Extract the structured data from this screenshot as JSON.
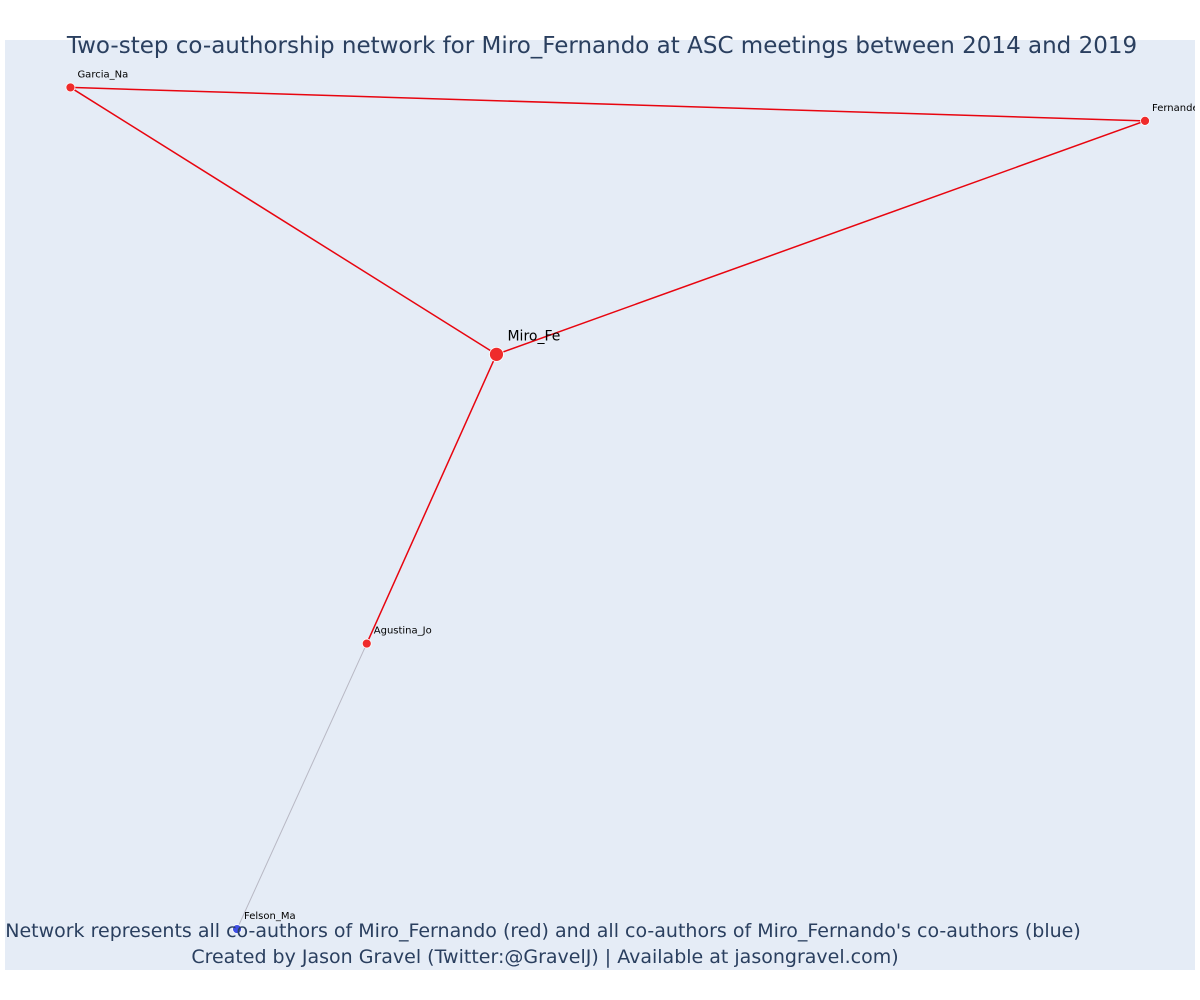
{
  "chart_data": {
    "type": "network",
    "title": "Two-step co-authorship network for Miro_Fernando at ASC meetings between 2014 and 2019",
    "annotation_line1": "Network represents all co-authors of Miro_Fernando (red) and all co-authors of Miro_Fernando's co-authors (blue)",
    "annotation_line2": "Created by Jason Gravel (Twitter:@GravelJ) | Available at jasongravel.com)",
    "x_range": [
      0,
      1
    ],
    "y_range": [
      0,
      1
    ],
    "background_color": "#e5ecf6",
    "colors": {
      "red": "#ef2b2b",
      "blue": "#3f4fe6",
      "red_edge": "#e8050f",
      "grey_edge": "#b8b8c4",
      "node_outline": "#ffffff"
    },
    "nodes": [
      {
        "id": "Miro_Fe",
        "label": "Miro_Fe",
        "x": 0.413,
        "y": 0.662,
        "group": "red",
        "role": "ego"
      },
      {
        "id": "Garcia_Na",
        "label": "Garcia_Na",
        "x": 0.055,
        "y": 0.949,
        "group": "red",
        "role": "alter"
      },
      {
        "id": "Fernandez_E",
        "label": "Fernandez_E",
        "x": 0.958,
        "y": 0.913,
        "group": "red",
        "role": "alter"
      },
      {
        "id": "Agustina_Jo",
        "label": "Agustina_Jo",
        "x": 0.304,
        "y": 0.351,
        "group": "red",
        "role": "alter"
      },
      {
        "id": "Felson_Ma",
        "label": "Felson_Ma",
        "x": 0.195,
        "y": 0.044,
        "group": "blue",
        "role": "alter"
      }
    ],
    "edges": [
      {
        "source": "Garcia_Na",
        "target": "Fernandez_E",
        "color": "red"
      },
      {
        "source": "Garcia_Na",
        "target": "Miro_Fe",
        "color": "red"
      },
      {
        "source": "Fernandez_E",
        "target": "Miro_Fe",
        "color": "red"
      },
      {
        "source": "Miro_Fe",
        "target": "Agustina_Jo",
        "color": "red"
      },
      {
        "source": "Agustina_Jo",
        "target": "Felson_Ma",
        "color": "grey"
      }
    ]
  }
}
